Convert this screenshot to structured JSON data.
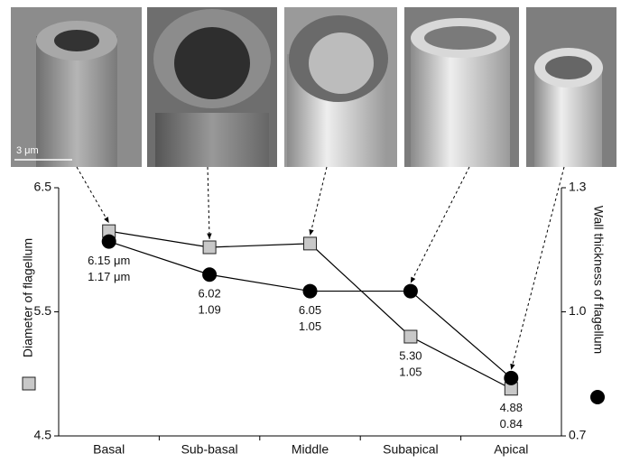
{
  "scale_bar": "3 μm",
  "chart_data": {
    "type": "line",
    "categories": [
      "Basal",
      "Sub-basal",
      "Middle",
      "Subapical",
      "Apical"
    ],
    "y_label": "Diameter of flagellum",
    "y2_label": "Wall thickness of flagellum",
    "ylim": [
      4.5,
      6.5
    ],
    "yticks": [
      4.5,
      5.5,
      6.5
    ],
    "y2lim": [
      0.7,
      1.3
    ],
    "y2ticks": [
      0.7,
      {
        "value": 1.0,
        "label": "1.0"
      },
      1.3
    ],
    "series": [
      {
        "name": "Diameter of flagellum",
        "color": "#c8c8c8",
        "marker": "square",
        "values": [
          6.15,
          6.02,
          6.05,
          5.3,
          4.88
        ],
        "value_labels": [
          "6.15 μm",
          "6.02",
          "6.05",
          "5.30",
          "4.88"
        ]
      },
      {
        "name": "Wall thickness of flagellum",
        "color": "#000000",
        "marker": "circle",
        "axis": "y2",
        "values": [
          1.17,
          1.09,
          1.05,
          1.05,
          0.84
        ],
        "value_labels": [
          "1.17 μm",
          "1.09",
          "1.05",
          "1.05",
          "0.84"
        ]
      }
    ]
  }
}
